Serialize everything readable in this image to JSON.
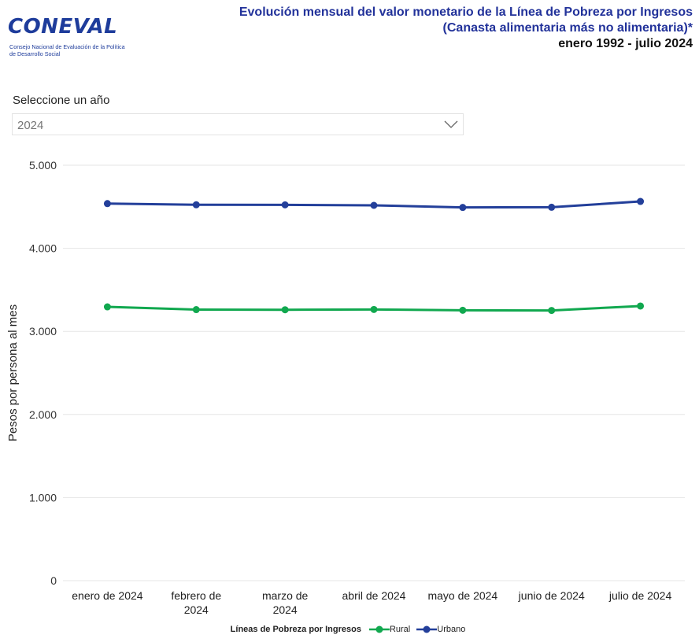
{
  "logo": {
    "wordmark": "CONEVAL",
    "subtitle": "Consejo Nacional de Evaluación de la Política de Desarrollo Social"
  },
  "header": {
    "title_line1": "Evolución mensual del valor monetario de la Línea de Pobreza por Ingresos",
    "title_line2": "(Canasta alimentaria más no alimentaria)*",
    "title_line3": "enero 1992 - julio 2024"
  },
  "year_selector": {
    "label": "Seleccione un año",
    "value": "2024"
  },
  "colors": {
    "rural": "#11a84f",
    "urbano": "#233f9a",
    "title_blue": "#22329a",
    "grid": "#e6e6e6"
  },
  "chart_data": {
    "type": "line",
    "categories": [
      "enero de 2024",
      "febrero de 2024",
      "marzo de 2024",
      "abril de 2024",
      "mayo de 2024",
      "junio de 2024",
      "julio de 2024"
    ],
    "category_lines": [
      [
        "enero de 2024"
      ],
      [
        "febrero de",
        "2024"
      ],
      [
        "marzo de",
        "2024"
      ],
      [
        "abril de 2024"
      ],
      [
        "mayo de 2024"
      ],
      [
        "junio de 2024"
      ],
      [
        "julio de 2024"
      ]
    ],
    "series": [
      {
        "name": "Rural",
        "values": [
          3295,
          3262,
          3260,
          3264,
          3254,
          3252,
          3305
        ]
      },
      {
        "name": "Urbano",
        "values": [
          4538,
          4524,
          4523,
          4517,
          4492,
          4494,
          4564
        ]
      }
    ],
    "ylabel": "Pesos por persona al mes",
    "ylim": [
      0,
      5000
    ],
    "yticks": [
      0,
      1000,
      2000,
      3000,
      4000,
      5000
    ],
    "ytick_labels": [
      "0",
      "1.000",
      "2.000",
      "3.000",
      "4.000",
      "5.000"
    ],
    "grid": true,
    "legend_title": "Líneas de Pobreza por Ingresos",
    "legend_position": "bottom-center"
  }
}
